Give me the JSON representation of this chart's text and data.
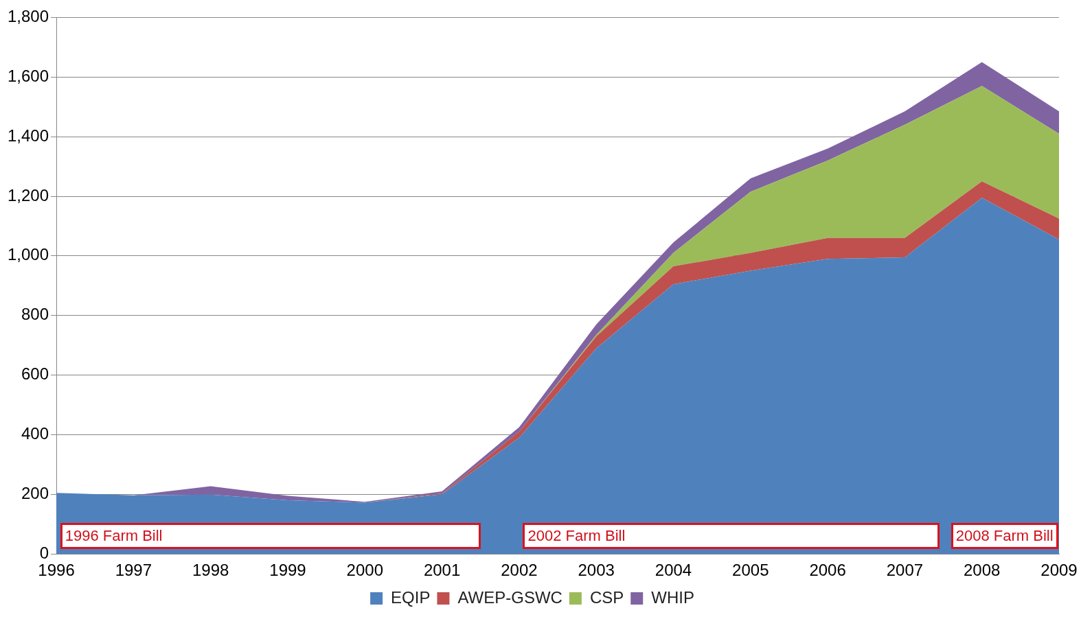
{
  "chart_data": {
    "type": "area",
    "stacked": true,
    "categories": [
      "1996",
      "1997",
      "1998",
      "1999",
      "2000",
      "2001",
      "2002",
      "2003",
      "2004",
      "2005",
      "2006",
      "2007",
      "2008",
      "2009"
    ],
    "series": [
      {
        "name": "EQIP",
        "color": "#4f81bd",
        "values": [
          205,
          197,
          199,
          180,
          172,
          200,
          390,
          690,
          905,
          950,
          990,
          995,
          1195,
          1055
        ]
      },
      {
        "name": "AWEP-GSWC",
        "color": "#c0504d",
        "values": [
          0,
          0,
          0,
          0,
          0,
          3,
          20,
          40,
          60,
          60,
          70,
          65,
          55,
          70
        ]
      },
      {
        "name": "CSP",
        "color": "#9bbb59",
        "values": [
          0,
          0,
          0,
          0,
          0,
          0,
          0,
          5,
          45,
          205,
          260,
          380,
          320,
          285
        ]
      },
      {
        "name": "WHIP",
        "color": "#8064a2",
        "values": [
          0,
          0,
          28,
          15,
          3,
          7,
          15,
          35,
          35,
          45,
          40,
          45,
          80,
          75
        ]
      }
    ],
    "ylim": [
      0,
      1800
    ],
    "yticks": [
      0,
      200,
      400,
      600,
      800,
      {
        "value": 1000,
        "label": "1,000"
      },
      {
        "value": 1200,
        "label": "1,200"
      },
      {
        "value": 1400,
        "label": "1,400"
      },
      {
        "value": 1600,
        "label": "1,600"
      },
      {
        "value": 1800,
        "label": "1,800"
      }
    ],
    "grid": "y",
    "legend": "bottom",
    "annotations": [
      "1996 Farm Bill",
      "2002 Farm Bill",
      "2008 Farm Bill"
    ]
  }
}
